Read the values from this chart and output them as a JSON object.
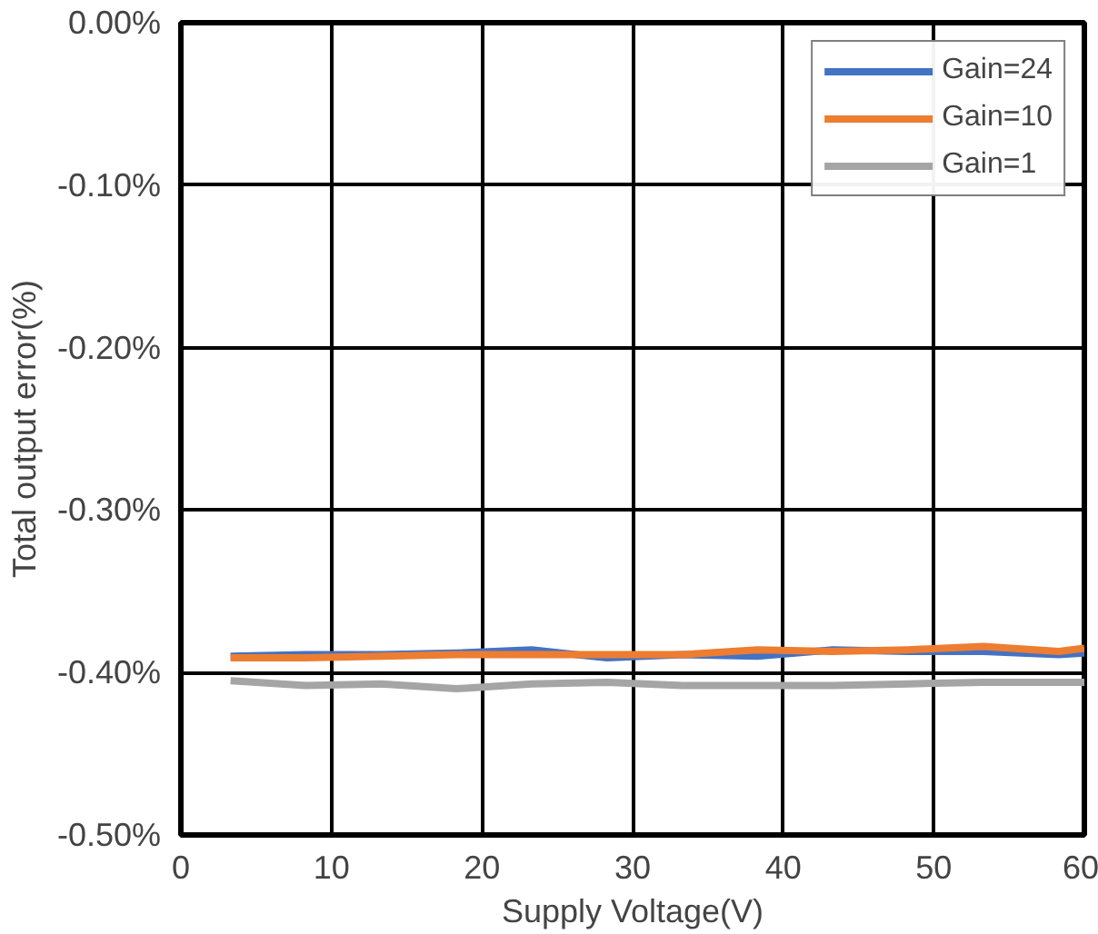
{
  "chart_data": {
    "type": "line",
    "xlabel": "Supply Voltage(V)",
    "ylabel": "Total output error(%)",
    "x": [
      3.3,
      8.3,
      13.3,
      18.3,
      23.3,
      28.3,
      33.3,
      38.3,
      43.3,
      48.3,
      53.3,
      58.3,
      60
    ],
    "series": [
      {
        "name": "Gain=24",
        "color": "#4472c4",
        "values": [
          -0.39,
          -0.389,
          -0.389,
          -0.388,
          -0.386,
          -0.391,
          -0.389,
          -0.39,
          -0.386,
          -0.387,
          -0.387,
          -0.389,
          -0.388
        ]
      },
      {
        "name": "Gain=10",
        "color": "#ed7d31",
        "values": [
          -0.391,
          -0.391,
          -0.39,
          -0.389,
          -0.389,
          -0.389,
          -0.389,
          -0.386,
          -0.387,
          -0.386,
          -0.384,
          -0.387,
          -0.385
        ]
      },
      {
        "name": "Gain=1",
        "color": "#a5a5a5",
        "values": [
          -0.405,
          -0.408,
          -0.407,
          -0.41,
          -0.407,
          -0.406,
          -0.408,
          -0.408,
          -0.408,
          -0.407,
          -0.406,
          -0.406,
          -0.406
        ]
      }
    ],
    "xlim": [
      0,
      60
    ],
    "xticks": [
      0,
      10,
      20,
      30,
      40,
      50,
      60
    ],
    "ylim": [
      -0.5,
      0
    ],
    "yticks": [
      {
        "value": 0,
        "label": "0.00%"
      },
      {
        "value": -0.1,
        "label": "-0.10%"
      },
      {
        "value": -0.2,
        "label": "-0.20%"
      },
      {
        "value": -0.3,
        "label": "-0.30%"
      },
      {
        "value": -0.4,
        "label": "-0.40%"
      },
      {
        "value": -0.5,
        "label": "-0.50%"
      }
    ],
    "grid": true,
    "legend": "top right",
    "marker": "none",
    "line_style": "solid"
  }
}
